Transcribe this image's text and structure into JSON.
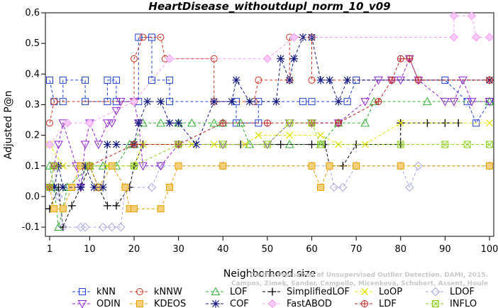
{
  "chart_data": {
    "type": "line",
    "title": "HeartDisease_withoutdupl_norm_10_v09",
    "xlabel": "Neighborhood size",
    "ylabel": "Adjusted P@n",
    "xlim": [
      1,
      100
    ],
    "ylim": [
      -0.13,
      0.6
    ],
    "x_ticks": [
      1,
      10,
      20,
      30,
      40,
      50,
      60,
      70,
      80,
      90,
      100
    ],
    "y_ticks": [
      -0.1,
      0.0,
      0.1,
      0.2,
      0.3,
      0.4,
      0.5,
      0.6
    ],
    "y_tick_labels": [
      "-0.1",
      "0.0",
      "0.1",
      "0.2",
      "0.3",
      "0.4",
      "0.5",
      "0.6"
    ],
    "legend_position": "bottom",
    "watermark": [
      "On the Evaluation of Unsupervised Outlier Detection. DAMI, 2015.",
      "Campos, Zimek, Sander, Campello, Micenkova, Schubert, Assent, Houle"
    ],
    "series": [
      {
        "name": "kNN",
        "color": "#1f3fd0",
        "marker": "square",
        "values": [
          [
            1,
            0.38
          ],
          [
            2,
            0.31
          ],
          [
            4,
            0.31
          ],
          [
            4,
            0.38
          ],
          [
            9,
            0.38
          ],
          [
            9,
            0.31
          ],
          [
            14,
            0.31
          ],
          [
            14,
            0.38
          ],
          [
            16,
            0.38
          ],
          [
            16,
            0.31
          ],
          [
            21,
            0.31
          ],
          [
            21,
            0.52
          ],
          [
            24,
            0.52
          ],
          [
            24,
            0.38
          ],
          [
            28,
            0.38
          ],
          [
            28,
            0.31
          ],
          [
            43,
            0.31
          ],
          [
            43,
            0.24
          ],
          [
            48,
            0.24
          ],
          [
            48,
            0.31
          ],
          [
            58,
            0.31
          ],
          [
            60,
            0.31
          ],
          [
            68,
            0.31
          ],
          [
            70,
            0.38
          ],
          [
            90,
            0.38
          ],
          [
            95,
            0.31
          ],
          [
            97,
            0.24
          ],
          [
            100,
            0.31
          ]
        ]
      },
      {
        "name": "kNNW",
        "color": "#d03020",
        "marker": "circle",
        "values": [
          [
            1,
            0.24
          ],
          [
            2,
            0.31
          ],
          [
            20,
            0.31
          ],
          [
            20,
            0.45
          ],
          [
            22,
            0.52
          ],
          [
            26,
            0.52
          ],
          [
            27,
            0.45
          ],
          [
            38,
            0.45
          ],
          [
            38,
            0.31
          ],
          [
            47,
            0.31
          ],
          [
            48,
            0.38
          ],
          [
            55,
            0.38
          ],
          [
            55,
            0.52
          ],
          [
            60,
            0.52
          ],
          [
            60,
            0.38
          ],
          [
            100,
            0.38
          ]
        ]
      },
      {
        "name": "LOF",
        "color": "#30b030",
        "marker": "triangle",
        "values": [
          [
            1,
            0.1
          ],
          [
            2,
            0.03
          ],
          [
            3,
            -0.1
          ],
          [
            5,
            0.03
          ],
          [
            10,
            0.1
          ],
          [
            13,
            0.1
          ],
          [
            16,
            0.1
          ],
          [
            19,
            0.17
          ],
          [
            20,
            0.17
          ],
          [
            22,
            0.24
          ],
          [
            26,
            0.24
          ],
          [
            30,
            0.24
          ],
          [
            33,
            0.24
          ],
          [
            38,
            0.24
          ],
          [
            40,
            0.24
          ],
          [
            44,
            0.24
          ],
          [
            46,
            0.17
          ],
          [
            55,
            0.17
          ],
          [
            62,
            0.17
          ],
          [
            66,
            0.24
          ],
          [
            72,
            0.24
          ],
          [
            74,
            0.31
          ],
          [
            86,
            0.31
          ],
          [
            100,
            0.31
          ]
        ]
      },
      {
        "name": "SimplifiedLOF",
        "color": "#000000",
        "marker": "plus",
        "values": [
          [
            1,
            -0.04
          ],
          [
            3,
            0.03
          ],
          [
            4,
            -0.1
          ],
          [
            6,
            -0.03
          ],
          [
            8,
            0.03
          ],
          [
            10,
            0.1
          ],
          [
            12,
            0.03
          ],
          [
            14,
            -0.03
          ],
          [
            16,
            -0.03
          ],
          [
            19,
            0.03
          ],
          [
            20,
            0.1
          ],
          [
            22,
            0.17
          ],
          [
            30,
            0.17
          ],
          [
            44,
            0.17
          ],
          [
            53,
            0.17
          ],
          [
            60,
            0.17
          ],
          [
            63,
            0.17
          ],
          [
            64,
            0.1
          ],
          [
            67,
            0.1
          ],
          [
            70,
            0.17
          ],
          [
            80,
            0.17
          ],
          [
            80,
            0.24
          ],
          [
            86,
            0.24
          ],
          [
            90,
            0.24
          ],
          [
            93,
            0.24
          ]
        ]
      },
      {
        "name": "LoOP",
        "color": "#e0e000",
        "marker": "x",
        "values": [
          [
            1,
            0.17
          ],
          [
            4,
            0.1
          ],
          [
            14,
            0.1
          ],
          [
            20,
            0.1
          ],
          [
            22,
            0.17
          ],
          [
            30,
            0.17
          ],
          [
            33,
            0.17
          ],
          [
            38,
            0.17
          ],
          [
            45,
            0.17
          ],
          [
            48,
            0.2
          ],
          [
            55,
            0.2
          ],
          [
            62,
            0.2
          ],
          [
            66,
            0.17
          ],
          [
            72,
            0.17
          ],
          [
            80,
            0.24
          ],
          [
            100,
            0.24
          ]
        ]
      },
      {
        "name": "LDOF",
        "color": "#a8a8e0",
        "marker": "diamond",
        "values": [
          [
            1,
            0.03
          ],
          [
            2,
            0.1
          ],
          [
            3,
            0.0
          ],
          [
            4,
            -0.1
          ],
          [
            8,
            -0.1
          ],
          [
            9,
            -0.1
          ],
          [
            13,
            -0.1
          ],
          [
            15,
            -0.1
          ],
          [
            17,
            -0.1
          ],
          [
            18,
            0.03
          ],
          [
            24,
            0.03
          ],
          [
            26,
            0.1
          ],
          [
            40,
            0.1
          ],
          [
            60,
            0.1
          ],
          [
            64,
            0.1
          ],
          [
            65,
            0.03
          ],
          [
            67,
            0.03
          ],
          [
            70,
            0.1
          ],
          [
            80,
            0.1
          ],
          [
            82,
            0.03
          ],
          [
            84,
            0.1
          ],
          [
            100,
            0.1
          ]
        ]
      },
      {
        "name": "ODIN",
        "color": "#9020d0",
        "marker": "triangle-down",
        "values": [
          [
            1,
            0.03
          ],
          [
            2,
            0.1
          ],
          [
            3,
            0.17
          ],
          [
            4,
            0.24
          ],
          [
            7,
            0.1
          ],
          [
            8,
            0.03
          ],
          [
            9,
            0.17
          ],
          [
            10,
            0.24
          ],
          [
            12,
            0.17
          ],
          [
            14,
            0.24
          ],
          [
            15,
            0.24
          ],
          [
            16,
            0.28
          ],
          [
            17,
            0.31
          ],
          [
            20,
            0.31
          ],
          [
            21,
            0.24
          ],
          [
            22,
            0.1
          ],
          [
            26,
            0.1
          ],
          [
            30,
            0.17
          ],
          [
            40,
            0.17
          ],
          [
            50,
            0.17
          ],
          [
            55,
            0.24
          ],
          [
            60,
            0.24
          ],
          [
            66,
            0.24
          ],
          [
            72,
            0.31
          ],
          [
            75,
            0.38
          ],
          [
            78,
            0.38
          ],
          [
            80,
            0.38
          ],
          [
            82,
            0.45
          ],
          [
            84,
            0.38
          ],
          [
            90,
            0.31
          ],
          [
            92,
            0.31
          ],
          [
            94,
            0.38
          ],
          [
            96,
            0.31
          ],
          [
            100,
            0.31
          ]
        ]
      },
      {
        "name": "KDEOS",
        "color": "#e8a000",
        "marker": "square-filled",
        "values": [
          [
            1,
            0.03
          ],
          [
            2,
            -0.04
          ],
          [
            4,
            -0.04
          ],
          [
            6,
            0.03
          ],
          [
            8,
            0.1
          ],
          [
            10,
            0.1
          ],
          [
            12,
            0.03
          ],
          [
            15,
            0.1
          ],
          [
            18,
            0.03
          ],
          [
            19,
            -0.04
          ],
          [
            20,
            -0.04
          ],
          [
            26,
            -0.04
          ],
          [
            28,
            0.03
          ],
          [
            30,
            0.1
          ],
          [
            40,
            0.1
          ],
          [
            60,
            0.1
          ],
          [
            62,
            0.03
          ],
          [
            64,
            0.1
          ],
          [
            70,
            0.1
          ],
          [
            80,
            0.1
          ],
          [
            100,
            0.1
          ]
        ]
      },
      {
        "name": "COF",
        "color": "#101880",
        "marker": "asterisk",
        "values": [
          [
            1,
            0.03
          ],
          [
            2,
            0.03
          ],
          [
            3,
            0.1
          ],
          [
            4,
            0.03
          ],
          [
            8,
            0.03
          ],
          [
            9,
            0.1
          ],
          [
            11,
            0.03
          ],
          [
            13,
            0.03
          ],
          [
            14,
            0.17
          ],
          [
            16,
            0.17
          ],
          [
            20,
            0.17
          ],
          [
            21,
            0.24
          ],
          [
            23,
            0.31
          ],
          [
            26,
            0.31
          ],
          [
            28,
            0.24
          ],
          [
            30,
            0.24
          ],
          [
            34,
            0.17
          ],
          [
            38,
            0.31
          ],
          [
            42,
            0.31
          ],
          [
            43,
            0.38
          ],
          [
            46,
            0.31
          ],
          [
            52,
            0.31
          ],
          [
            53,
            0.45
          ],
          [
            55,
            0.38
          ],
          [
            56,
            0.45
          ],
          [
            58,
            0.52
          ],
          [
            60,
            0.52
          ],
          [
            62,
            0.38
          ],
          [
            64,
            0.38
          ],
          [
            66,
            0.31
          ],
          [
            68,
            0.38
          ],
          [
            100,
            0.38
          ]
        ]
      },
      {
        "name": "FastABOD",
        "color": "#f0a0f0",
        "marker": "diamond-filled",
        "values": [
          [
            1,
            0.17
          ],
          [
            5,
            0.24
          ],
          [
            10,
            0.24
          ],
          [
            20,
            0.31
          ],
          [
            28,
            0.45
          ],
          [
            50,
            0.45
          ],
          [
            56,
            0.52
          ],
          [
            92,
            0.52
          ],
          [
            92,
            0.59
          ],
          [
            96,
            0.59
          ],
          [
            97,
            0.52
          ],
          [
            100,
            0.52
          ]
        ]
      },
      {
        "name": "LDF",
        "color": "#c02020",
        "marker": "circle-plus",
        "values": [
          [
            1,
            0.03
          ],
          [
            2,
            0.1
          ],
          [
            10,
            0.1
          ],
          [
            20,
            0.17
          ],
          [
            30,
            0.17
          ],
          [
            40,
            0.24
          ],
          [
            50,
            0.24
          ],
          [
            60,
            0.24
          ],
          [
            66,
            0.24
          ],
          [
            75,
            0.31
          ],
          [
            78,
            0.38
          ],
          [
            80,
            0.45
          ],
          [
            82,
            0.45
          ],
          [
            84,
            0.38
          ],
          [
            100,
            0.38
          ]
        ]
      },
      {
        "name": "INFLO",
        "color": "#90d020",
        "marker": "star-box",
        "values": [
          [
            1,
            0.03
          ],
          [
            2,
            0.1
          ],
          [
            10,
            0.1
          ],
          [
            20,
            0.1
          ],
          [
            30,
            0.17
          ],
          [
            40,
            0.17
          ],
          [
            50,
            0.17
          ],
          [
            55,
            0.24
          ],
          [
            60,
            0.24
          ],
          [
            62,
            0.17
          ],
          [
            80,
            0.17
          ],
          [
            90,
            0.17
          ],
          [
            95,
            0.17
          ],
          [
            100,
            0.17
          ]
        ]
      }
    ]
  }
}
